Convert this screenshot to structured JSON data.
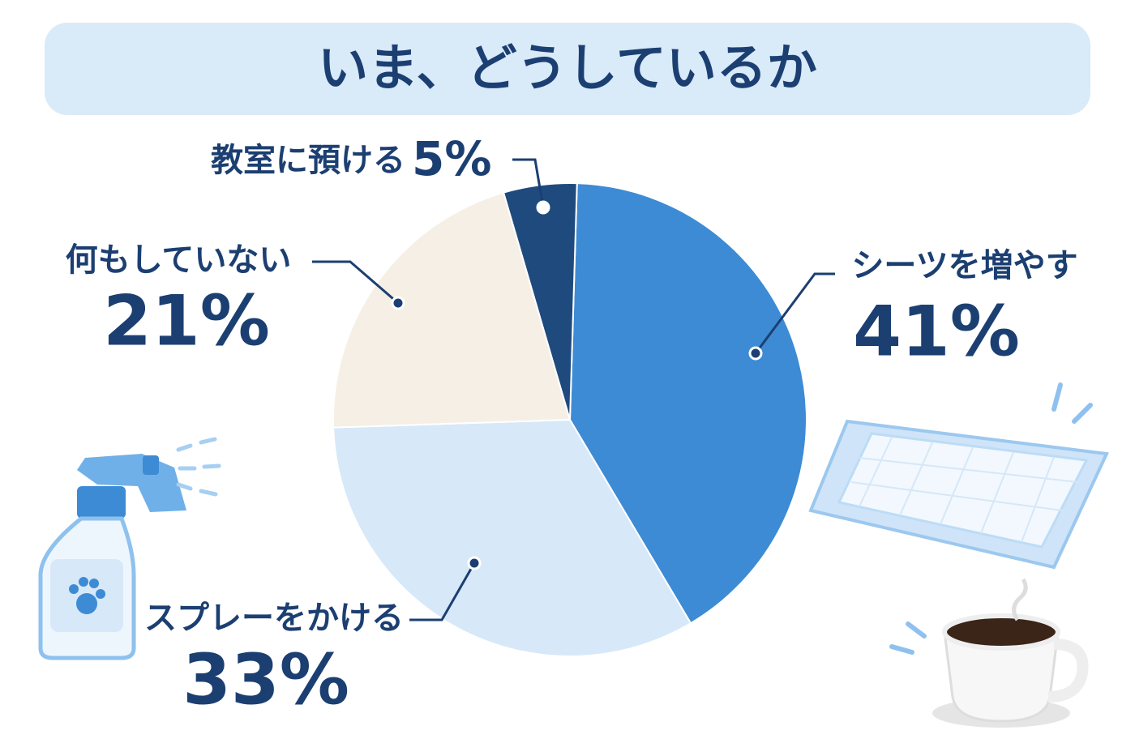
{
  "chart_data": {
    "type": "pie",
    "title": "いま、どうしているか",
    "categories": [
      "シーツを増やす",
      "スプレーをかける",
      "何もしていない",
      "教室に預ける"
    ],
    "values": [
      41,
      33,
      21,
      5
    ],
    "value_labels": [
      "41%",
      "33%",
      "21%",
      "5%"
    ],
    "colors": [
      "#3d8bd4",
      "#d7e8f9",
      "#f5efe6",
      "#1f4a7e"
    ]
  }
}
